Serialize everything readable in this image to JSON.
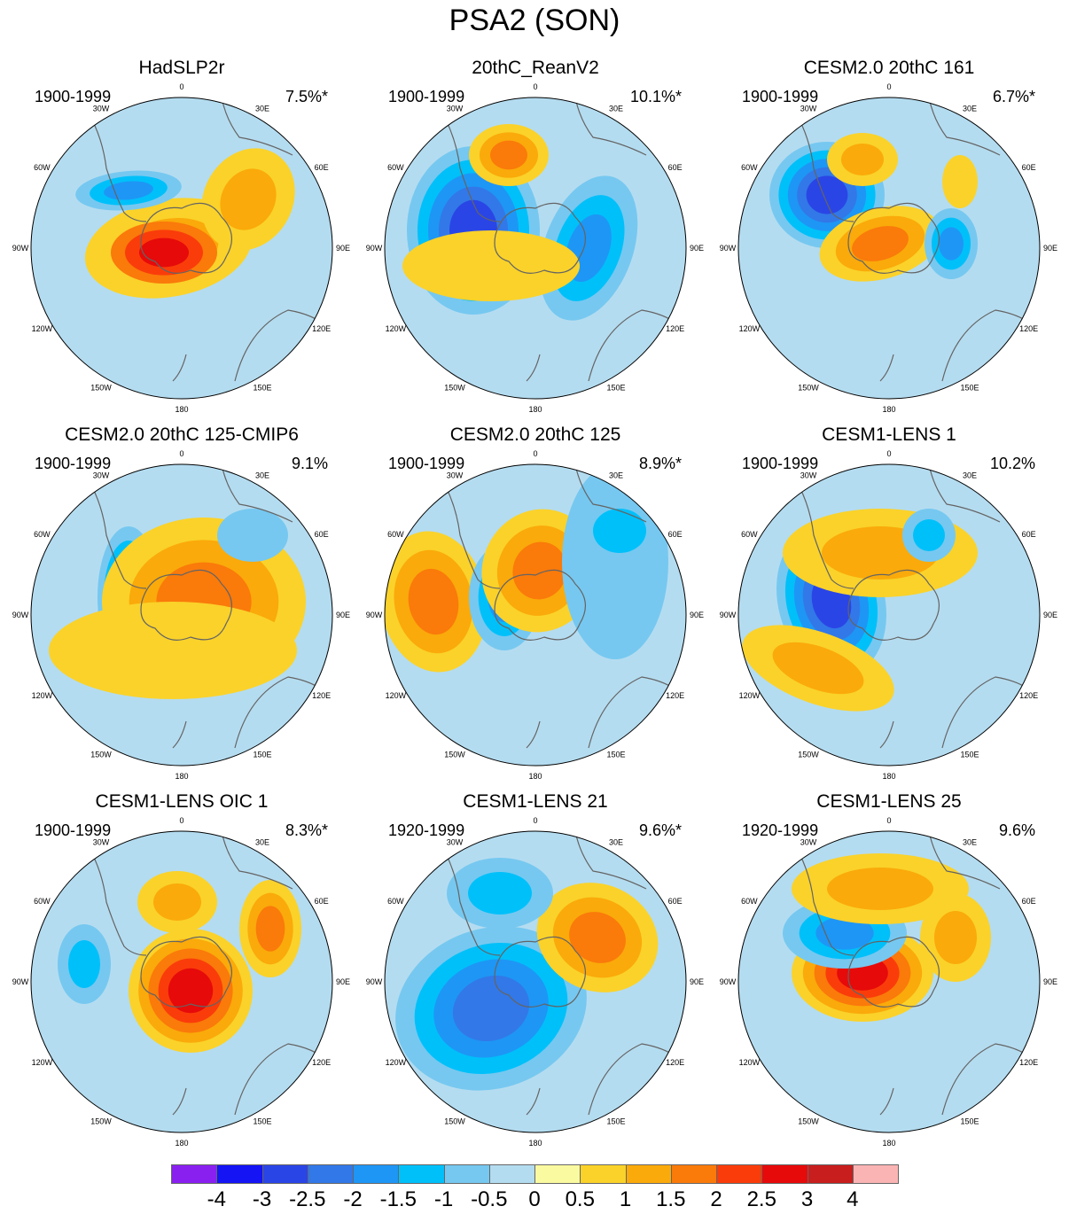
{
  "title": "PSA2 (SON)",
  "longitude_labels": [
    "0",
    "30E",
    "60E",
    "90E",
    "120E",
    "150E",
    "180",
    "150W",
    "120W",
    "90W",
    "60W",
    "30W"
  ],
  "panels": [
    {
      "title": "HadSLP2r",
      "period": "1900-1999",
      "percent": "7.5%*"
    },
    {
      "title": "20thC_ReanV2",
      "period": "1900-1999",
      "percent": "10.1%*"
    },
    {
      "title": "CESM2.0 20thC 161",
      "period": "1900-1999",
      "percent": "6.7%*"
    },
    {
      "title": "CESM2.0 20thC 125-CMIP6",
      "period": "1900-1999",
      "percent": "9.1%"
    },
    {
      "title": "CESM2.0 20thC 125",
      "period": "1900-1999",
      "percent": "8.9%*"
    },
    {
      "title": "CESM1-LENS 1",
      "period": "1900-1999",
      "percent": "10.2%"
    },
    {
      "title": "CESM1-LENS OIC 1",
      "period": "1900-1999",
      "percent": "8.3%*"
    },
    {
      "title": "CESM1-LENS 21",
      "period": "1920-1999",
      "percent": "9.6%*"
    },
    {
      "title": "CESM1-LENS 25",
      "period": "1920-1999",
      "percent": "9.6%"
    }
  ],
  "colorbar": {
    "labels": [
      "-4",
      "-3",
      "-2.5",
      "-2",
      "-1.5",
      "-1",
      "-0.5",
      "0",
      "0.5",
      "1",
      "1.5",
      "2",
      "2.5",
      "3",
      "4"
    ],
    "colors": [
      "#8a20f0",
      "#1414f5",
      "#2a45e6",
      "#3278e8",
      "#1e96f5",
      "#00c0fa",
      "#76c8f0",
      "#b4dcf0",
      "#fafaa0",
      "#fad22a",
      "#faaa0a",
      "#fa7a0a",
      "#fa3c0a",
      "#e60a0a",
      "#c81e1e",
      "#fab4b4"
    ]
  },
  "colors": {
    "background_negative": "#b4dcf0",
    "background_positive": "#fafaa0",
    "coastline": "#646464"
  }
}
